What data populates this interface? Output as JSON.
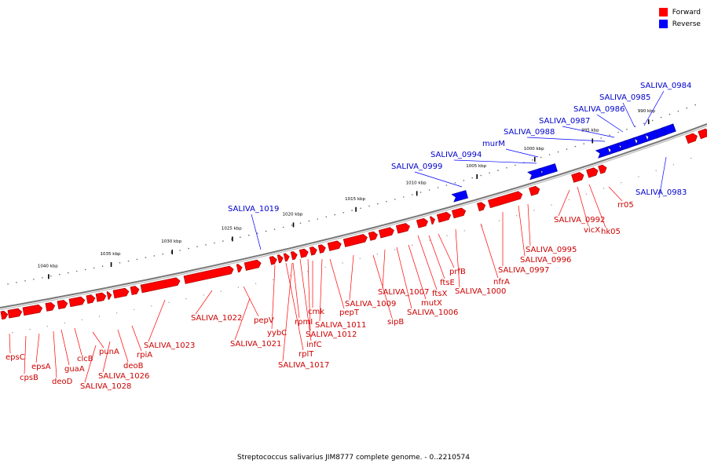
{
  "legend": {
    "forward_label": "Forward",
    "reverse_label": "Reverse",
    "forward_color": "#ff0000",
    "reverse_color": "#0000ff"
  },
  "caption": "Streptococcus salivarius JIM8777 complete genome. - 0..2210574",
  "scale": {
    "ticks": [
      "1040 kbp",
      "1035 kbp",
      "1030 kbp",
      "1025 kbp",
      "1020 kbp",
      "1015 kbp",
      "1010 kbp",
      "1005 kbp",
      "1000 kbp",
      "995 kbp",
      "990 kbp"
    ]
  },
  "forward_labels": [
    "epsC",
    "cpsB",
    "epsA",
    "deoD",
    "guaA",
    "clcB",
    "SALIVA_1028",
    "punA",
    "SALIVA_1026",
    "deoB",
    "rpiA",
    "SALIVA_1023",
    "SALIVA_1022",
    "SALIVA_1021",
    "pepV",
    "yybC",
    "rplT",
    "SALIVA_1017",
    "rpmI",
    "infC",
    "cmk",
    "SALIVA_1012",
    "SALIVA_1011",
    "pepT",
    "SALIVA_1009",
    "sipB",
    "SALIVA_1007",
    "SALIVA_1006",
    "mutX",
    "ftsX",
    "ftsE",
    "prfB",
    "SALIVA_1000",
    "nfrA",
    "SALIVA_0997",
    "SALIVA_0996",
    "SALIVA_0995",
    "SALIVA_0992",
    "vicX",
    "hk05",
    "rr05"
  ],
  "reverse_labels": [
    "SALIVA_1019",
    "SALIVA_0999",
    "SALIVA_0994",
    "murM",
    "SALIVA_0988",
    "SALIVA_0987",
    "SALIVA_0986",
    "SALIVA_0985",
    "SALIVA_0984",
    "SALIVA_0983"
  ]
}
